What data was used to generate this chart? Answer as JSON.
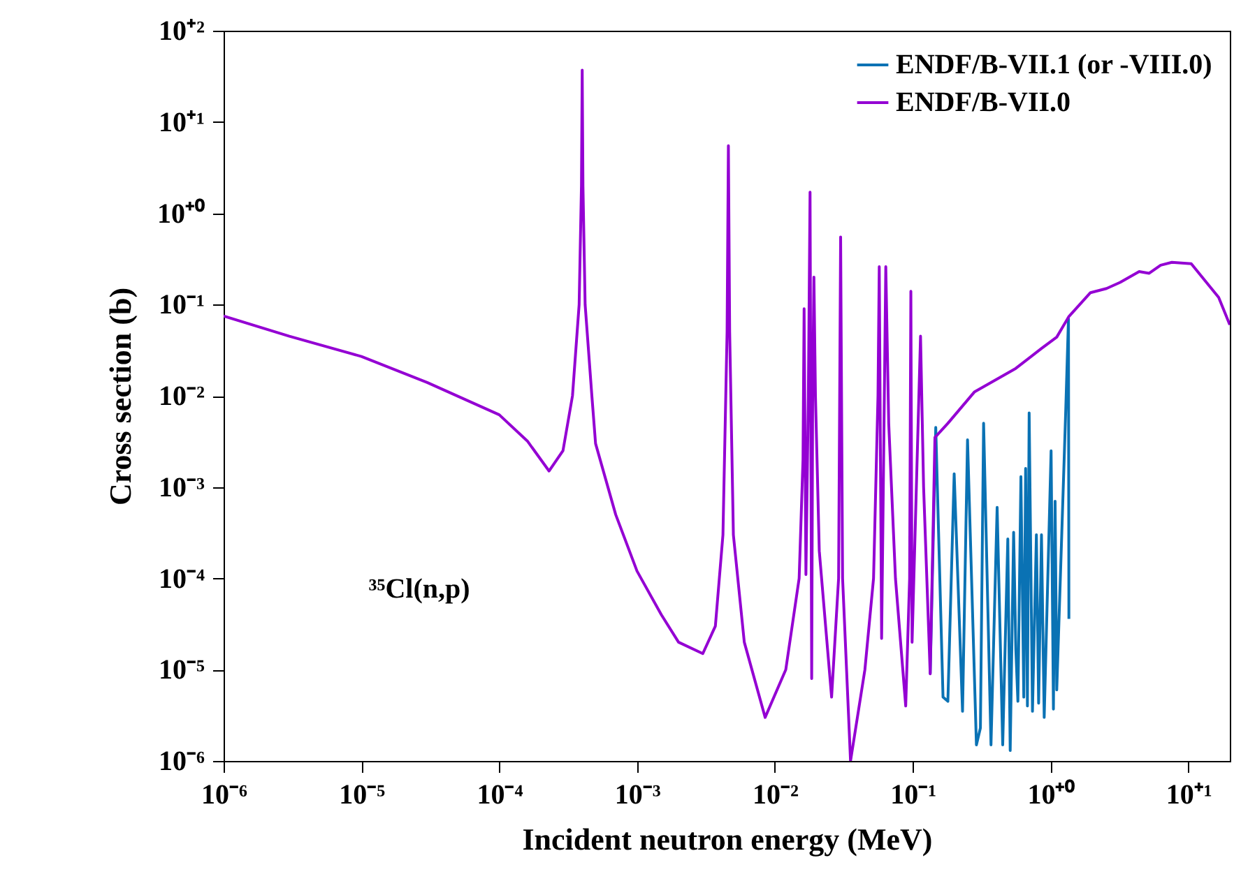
{
  "chart_data": {
    "type": "line",
    "xlabel": "Incident neutron energy (MeV)",
    "ylabel": "Cross section (b)",
    "log": "xy",
    "legend": "top right",
    "grid": false,
    "xlim": [
      1e-06,
      20
    ],
    "ylim": [
      1e-06,
      100
    ],
    "xticks": [
      {
        "value": 1e-06,
        "label": "10⁻⁶"
      },
      {
        "value": 1e-05,
        "label": "10⁻⁵"
      },
      {
        "value": 0.0001,
        "label": "10⁻⁴"
      },
      {
        "value": 0.001,
        "label": "10⁻³"
      },
      {
        "value": 0.01,
        "label": "10⁻²"
      },
      {
        "value": 0.1,
        "label": "10⁻¹"
      },
      {
        "value": 1,
        "label": "10⁺⁰"
      },
      {
        "value": 10,
        "label": "10⁺¹"
      }
    ],
    "yticks": [
      {
        "value": 1e-06,
        "label": "10⁻⁶"
      },
      {
        "value": 1e-05,
        "label": "10⁻⁵"
      },
      {
        "value": 0.0001,
        "label": "10⁻⁴"
      },
      {
        "value": 0.001,
        "label": "10⁻³"
      },
      {
        "value": 0.01,
        "label": "10⁻²"
      },
      {
        "value": 0.1,
        "label": "10⁻¹"
      },
      {
        "value": 1,
        "label": "10⁺⁰"
      },
      {
        "value": 10,
        "label": "10⁺¹"
      },
      {
        "value": 100,
        "label": "10⁺²"
      }
    ],
    "annotations": [
      "³⁵Cl(n,p)"
    ],
    "series": [
      {
        "name": "ENDF/B-VII.1 (or -VIII.0)",
        "color": "#0a72b4",
        "x": [
          0.134,
          0.147,
          0.166,
          0.18,
          0.2,
          0.23,
          0.25,
          0.29,
          0.31,
          0.327,
          0.37,
          0.41,
          0.45,
          0.49,
          0.51,
          0.54,
          0.56,
          0.58,
          0.61,
          0.64,
          0.66,
          0.68,
          0.7,
          0.74,
          0.79,
          0.82,
          0.86,
          0.9,
          1.01,
          1.05,
          1.08,
          1.11,
          1.29,
          1.35,
          1.36
        ],
        "values": [
          9e-06,
          0.0045,
          5e-06,
          4.5e-06,
          0.0014,
          3.5e-06,
          0.0033,
          1.5e-06,
          2.3e-06,
          0.005,
          1.5e-06,
          0.0006,
          1.5e-06,
          0.00027,
          1.3e-06,
          0.00032,
          1.7e-05,
          4.5e-06,
          0.0013,
          5e-06,
          0.0016,
          4e-06,
          0.0065,
          3.5e-06,
          0.0003,
          4.3e-06,
          0.0003,
          3e-06,
          0.0025,
          3.7e-06,
          0.0007,
          6e-06,
          0.007,
          0.07,
          3.6e-05
        ]
      },
      {
        "name": "ENDF/B-VII.0",
        "color": "#9400d3",
        "x": [
          1e-06,
          3e-06,
          1e-05,
          3e-05,
          0.0001,
          0.00016,
          0.00023,
          0.00029,
          0.00034,
          0.00038,
          0.000395,
          0.0004,
          0.000405,
          0.00042,
          0.00047,
          0.0005,
          0.0007,
          0.001,
          0.0015,
          0.002,
          0.003,
          0.0037,
          0.0042,
          0.0045,
          0.0046,
          0.0047,
          0.005,
          0.006,
          0.0085,
          0.012,
          0.015,
          0.016,
          0.0163,
          0.0168,
          0.0175,
          0.018,
          0.0185,
          0.0188,
          0.0192,
          0.0197,
          0.021,
          0.0258,
          0.029,
          0.03,
          0.031,
          0.0354,
          0.045,
          0.052,
          0.056,
          0.0572,
          0.0595,
          0.0638,
          0.067,
          0.075,
          0.089,
          0.095,
          0.097,
          0.099,
          0.114,
          0.12,
          0.134,
          0.145,
          0.18,
          0.28,
          0.56,
          0.86,
          1.11,
          1.36,
          1.95,
          2.55,
          3.2,
          4.4,
          5.2,
          6.3,
          7.6,
          10.5,
          16.6,
          20
        ],
        "values": [
          0.075,
          0.045,
          0.027,
          0.014,
          0.0062,
          0.0032,
          0.0015,
          0.0025,
          0.01,
          0.1,
          2,
          37,
          2,
          0.1,
          0.01,
          0.003,
          0.0005,
          0.00012,
          4e-05,
          2e-05,
          1.5e-05,
          3e-05,
          0.0003,
          0.05,
          5.5,
          0.05,
          0.0003,
          2e-05,
          3e-06,
          1e-05,
          0.0001,
          0.002,
          0.09,
          0.00011,
          0.01,
          1.7,
          8e-06,
          0.01,
          0.2,
          0.01,
          0.0002,
          5e-06,
          0.0001,
          0.55,
          0.0001,
          1e-06,
          1e-05,
          0.0001,
          0.01,
          0.26,
          2.2e-05,
          0.26,
          0.005,
          0.0001,
          4e-06,
          0.0001,
          0.14,
          2e-05,
          0.045,
          0.001,
          9e-06,
          0.0035,
          0.005,
          0.011,
          0.02,
          0.033,
          0.044,
          0.074,
          0.135,
          0.15,
          0.175,
          0.23,
          0.22,
          0.27,
          0.29,
          0.28,
          0.12,
          0.06
        ]
      }
    ]
  }
}
